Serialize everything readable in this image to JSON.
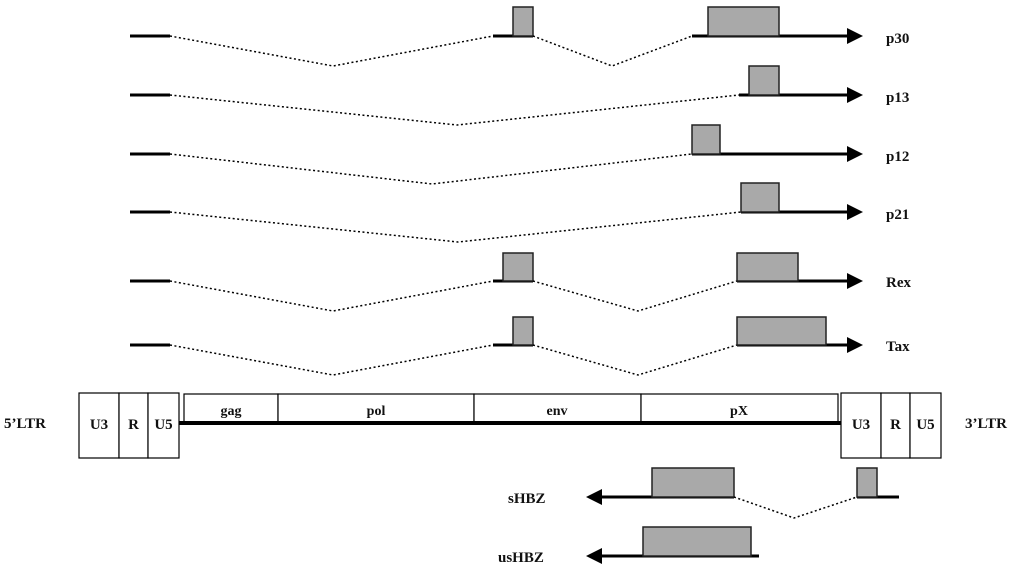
{
  "colors": {
    "exon_fill": "#a9a9a9",
    "line": "#000000",
    "background": "#ffffff"
  },
  "transcripts": [
    {
      "label": "p30",
      "direction": "forward"
    },
    {
      "label": "p13",
      "direction": "forward"
    },
    {
      "label": "p12",
      "direction": "forward"
    },
    {
      "label": "p21",
      "direction": "forward"
    },
    {
      "label": "Rex",
      "direction": "forward"
    },
    {
      "label": "Tax",
      "direction": "forward"
    }
  ],
  "genome": {
    "ltr5_label": "5’LTR",
    "ltr3_label": "3’LTR",
    "ltr5_segments": [
      "U3",
      "R",
      "U5"
    ],
    "genes": [
      "gag",
      "pol",
      "env",
      "pX"
    ],
    "ltr3_segments": [
      "U3",
      "R",
      "U5"
    ]
  },
  "antisense": [
    {
      "label": "sHBZ",
      "direction": "reverse"
    },
    {
      "label": "usHBZ",
      "direction": "reverse"
    }
  ]
}
